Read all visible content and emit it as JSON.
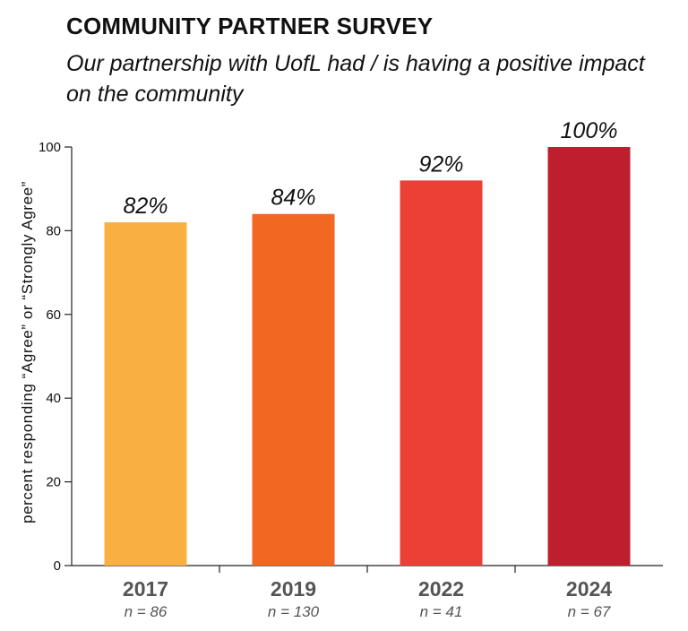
{
  "header": {
    "title": "COMMUNITY PARTNER SURVEY",
    "subtitle": "Our partnership with UofL had / is having a positive impact on the community"
  },
  "chart_data": {
    "type": "bar",
    "title": "COMMUNITY PARTNER SURVEY",
    "subtitle": "Our partnership with UofL had / is having a positive impact on the community",
    "xlabel": "",
    "ylabel": "percent responding “Agree” or “Strongly Agree”",
    "categories": [
      "2017",
      "2019",
      "2022",
      "2024"
    ],
    "sample_sizes": [
      "n = 86",
      "n = 130",
      "n = 41",
      "n = 67"
    ],
    "values": [
      82,
      84,
      92,
      100
    ],
    "data_labels": [
      "82%",
      "84%",
      "92%",
      "100%"
    ],
    "bar_colors": [
      "#F9B040",
      "#F26722",
      "#EC4036",
      "#BE1E2D"
    ],
    "yticks": [
      0,
      20,
      40,
      60,
      80,
      100
    ],
    "ylim": [
      0,
      100
    ],
    "grid": false,
    "legend": "none"
  }
}
